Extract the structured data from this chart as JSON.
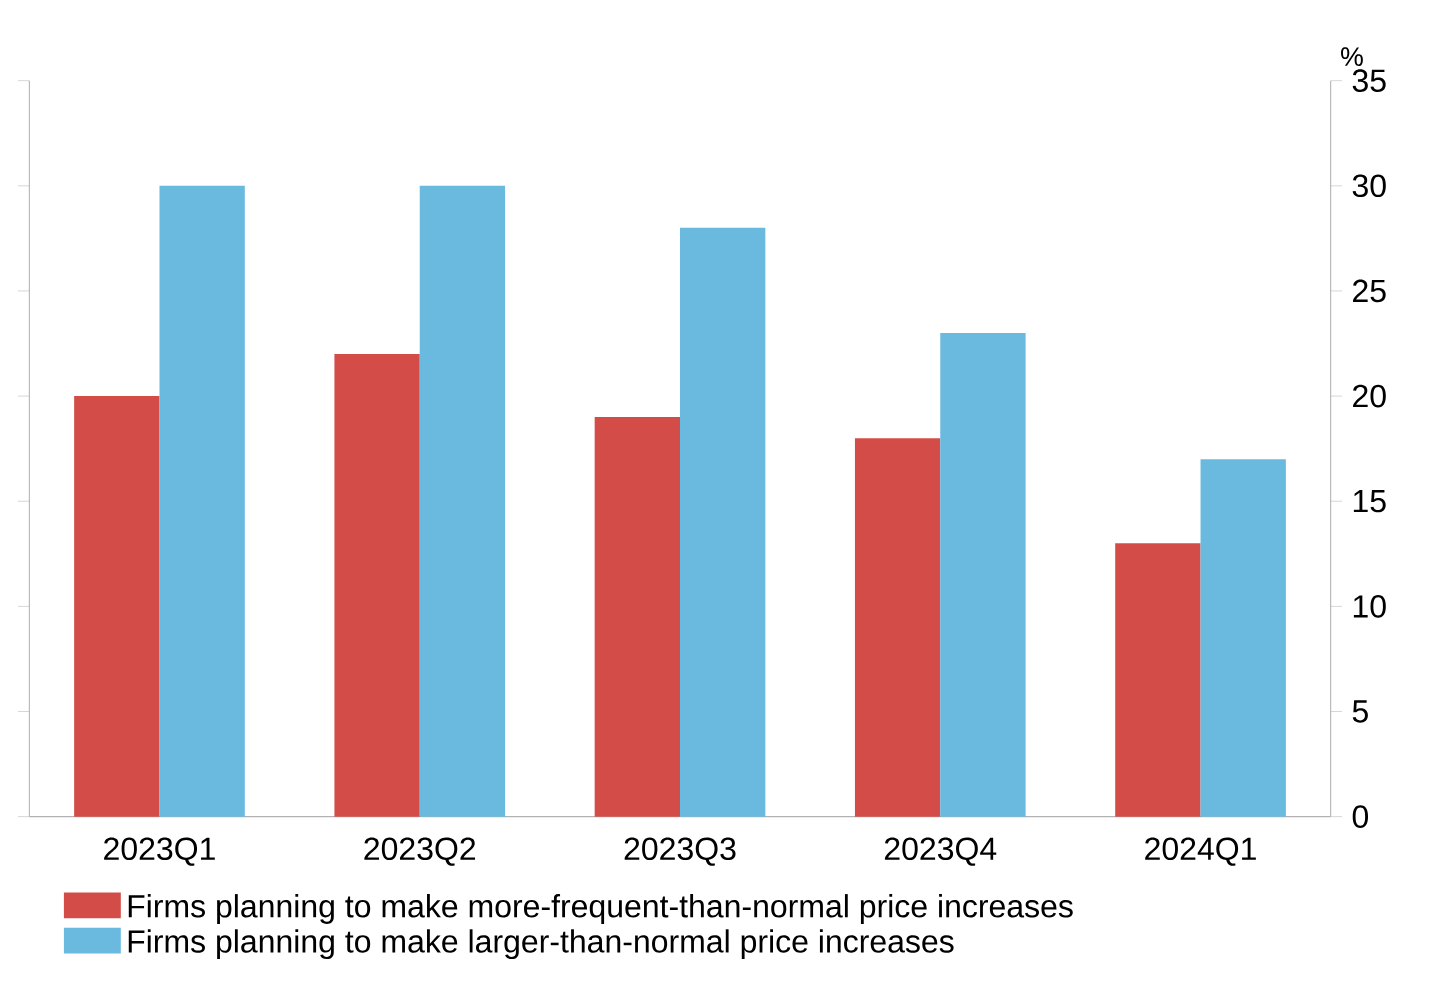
{
  "chart_data": {
    "type": "bar",
    "ylabel": "%",
    "categories": [
      "2023Q1",
      "2023Q2",
      "2023Q3",
      "2023Q4",
      "2024Q1"
    ],
    "series": [
      {
        "name": "Firms planning to make more-frequent-than-normal price increases",
        "color": "#d34c48",
        "values": [
          20,
          22,
          19,
          18,
          13
        ]
      },
      {
        "name": "Firms planning to make larger-than-normal price increases",
        "color": "#6ab9de",
        "values": [
          30,
          30,
          28,
          23,
          17
        ]
      }
    ],
    "ylim": [
      0,
      35
    ],
    "yticks": [
      0,
      5,
      10,
      15,
      20,
      25,
      30,
      35
    ],
    "grid": false,
    "legend": "bottom"
  }
}
